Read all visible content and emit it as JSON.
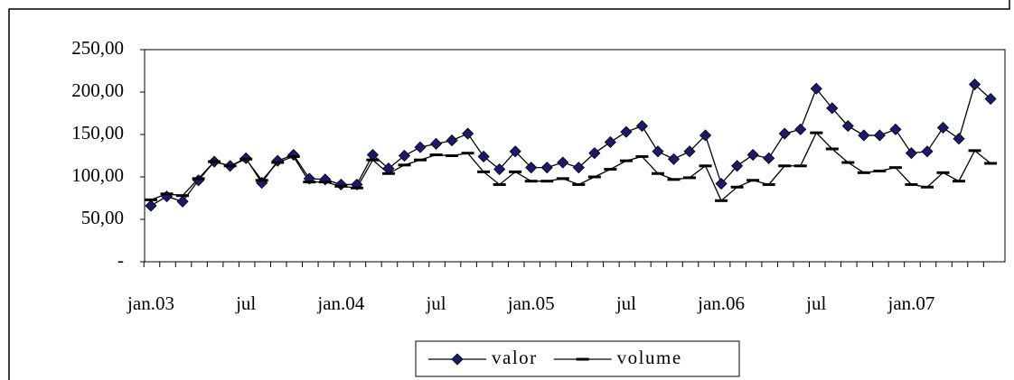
{
  "chart_data": {
    "type": "line",
    "categories": [
      "jan.03",
      null,
      null,
      null,
      null,
      null,
      "jul",
      null,
      null,
      null,
      null,
      null,
      "jan.04",
      null,
      null,
      null,
      null,
      null,
      "jul",
      null,
      null,
      null,
      null,
      null,
      "jan.05",
      null,
      null,
      null,
      null,
      null,
      "jul",
      null,
      null,
      null,
      null,
      null,
      "jan.06",
      null,
      null,
      null,
      null,
      null,
      "jul",
      null,
      null,
      null,
      null,
      null,
      "jan.07",
      null,
      null,
      null,
      null,
      null
    ],
    "series": [
      {
        "name": "valor",
        "color": "#1a1a6e",
        "marker": "diamond",
        "values": [
          66,
          77,
          71,
          96,
          118,
          113,
          122,
          93,
          119,
          126,
          98,
          97,
          91,
          91,
          126,
          110,
          125,
          135,
          139,
          143,
          151,
          124,
          109,
          130,
          111,
          111,
          117,
          111,
          128,
          141,
          153,
          160,
          130,
          121,
          130,
          149,
          92,
          113,
          126,
          122,
          151,
          156,
          204,
          181,
          160,
          149,
          149,
          156,
          128,
          130,
          158,
          145,
          209,
          192
        ]
      },
      {
        "name": "volume",
        "color": "#000000",
        "marker": "dash",
        "values": [
          73,
          80,
          78,
          98,
          118,
          113,
          121,
          96,
          117,
          124,
          94,
          94,
          89,
          87,
          120,
          104,
          114,
          120,
          126,
          125,
          128,
          106,
          91,
          106,
          95,
          95,
          98,
          91,
          100,
          109,
          119,
          124,
          104,
          97,
          99,
          113,
          72,
          88,
          96,
          91,
          113,
          113,
          152,
          133,
          117,
          105,
          107,
          111,
          91,
          88,
          105,
          95,
          131,
          116
        ]
      }
    ],
    "ylim": [
      0,
      250
    ],
    "yticks": [
      {
        "value": 0,
        "label": "-"
      },
      {
        "value": 50,
        "label": "50,00"
      },
      {
        "value": 100,
        "label": "100,00"
      },
      {
        "value": 150,
        "label": "150,00"
      },
      {
        "value": 200,
        "label": "200,00"
      },
      {
        "value": 250,
        "label": "250,00"
      }
    ],
    "grid": false
  }
}
